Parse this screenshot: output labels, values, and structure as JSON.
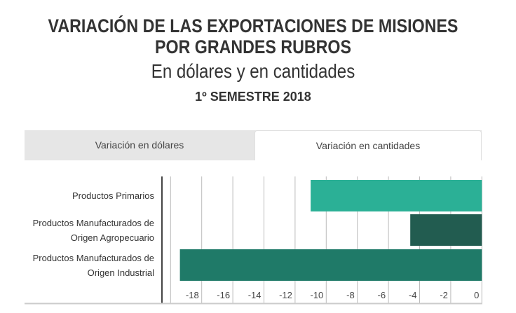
{
  "header": {
    "title": "VARIACIÓN DE LAS EXPORTACIONES DE MISIONES POR GRANDES RUBROS",
    "subtitle": "En dólares y en cantidades",
    "period": "1º SEMESTRE 2018"
  },
  "tabs": [
    {
      "label": "Variación en dólares",
      "active": false
    },
    {
      "label": "Variación en cantidades",
      "active": true
    }
  ],
  "chart_data": {
    "type": "bar",
    "orientation": "horizontal",
    "categories": [
      "Productos Primarios",
      "Productos Manufacturados de Origen Agropecuario",
      "Productos Manufacturados de Origen Industrial"
    ],
    "category_lines": [
      [
        "Productos Primarios"
      ],
      [
        "Productos Manufacturados de",
        "Origen Agropecuario"
      ],
      [
        "Productos Manufacturados de",
        "Origen Industrial"
      ]
    ],
    "values": [
      -11.0,
      -4.6,
      -19.4
    ],
    "colors": [
      "#2bb096",
      "#225c50",
      "#1f7a68"
    ],
    "xlim": [
      -20,
      0
    ],
    "xticks": [
      "-18",
      "-16",
      "-14",
      "-12",
      "-10",
      "-8",
      "-6",
      "-4",
      "-2",
      "0"
    ],
    "xtick_values": [
      -18,
      -16,
      -14,
      -12,
      -10,
      -8,
      -6,
      -4,
      -2,
      0
    ],
    "grid": true
  }
}
